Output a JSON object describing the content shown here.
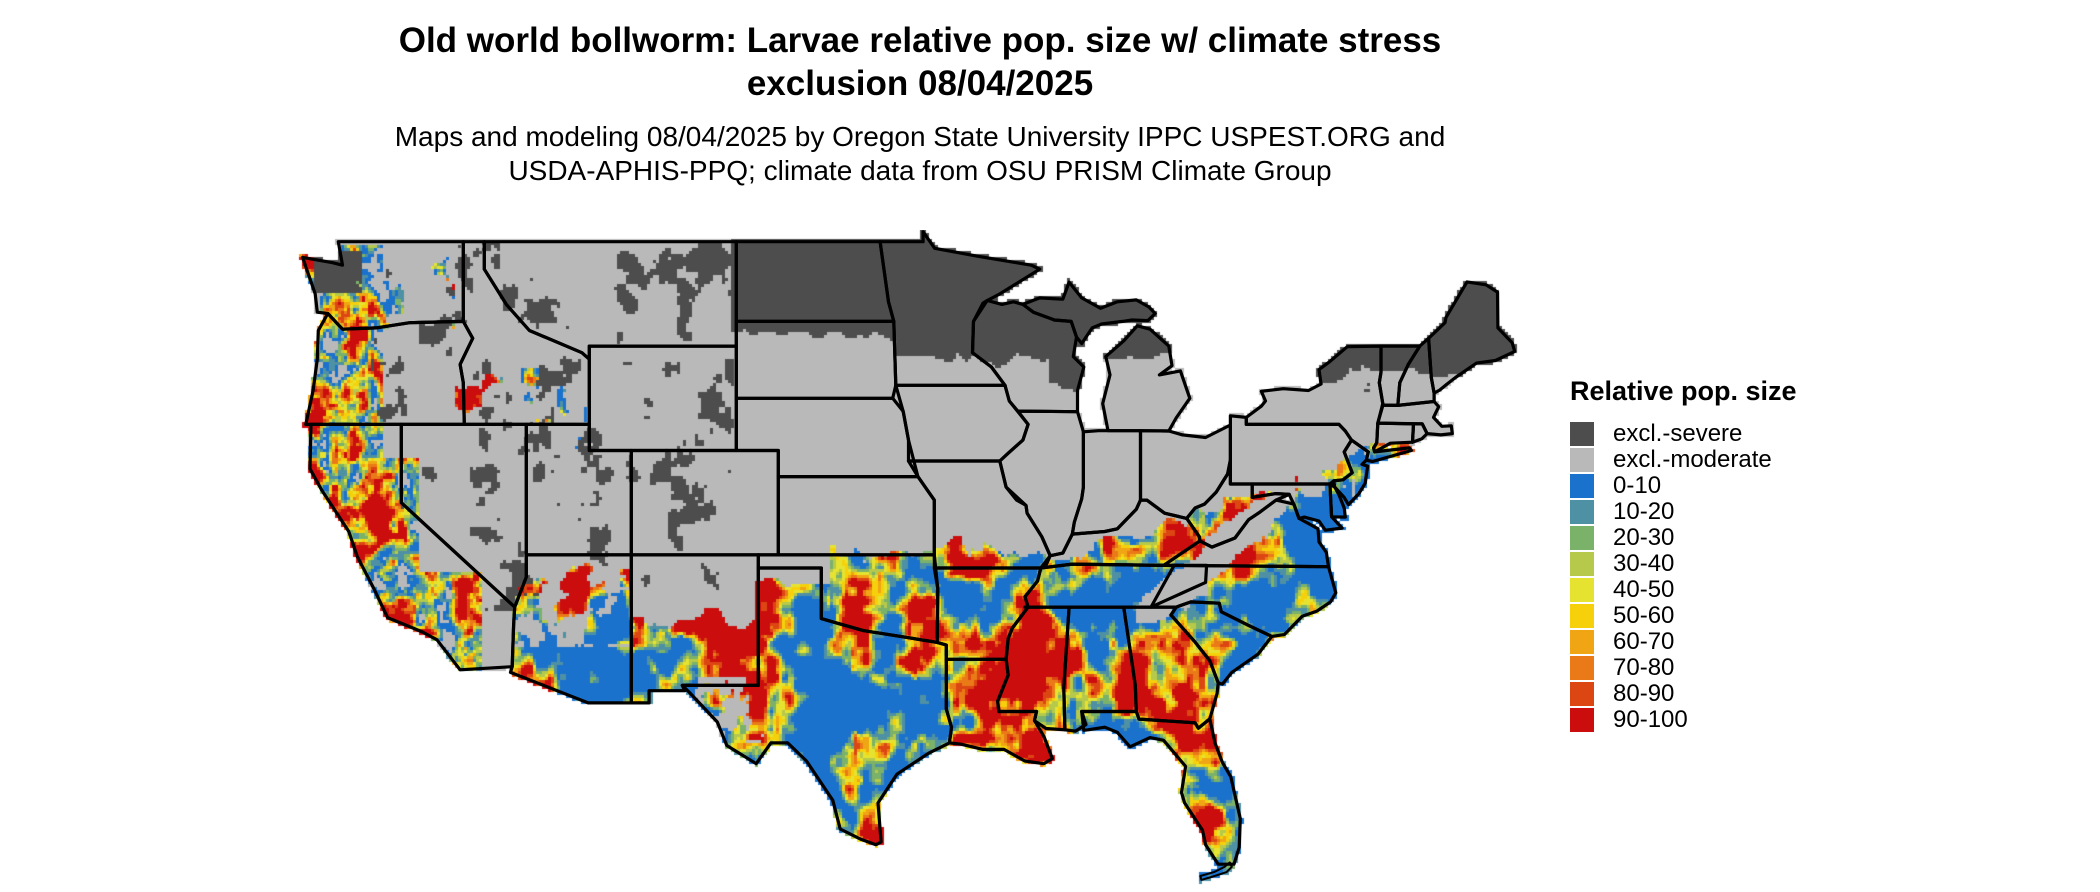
{
  "header": {
    "title_line1": "Old world bollworm: Larvae relative pop. size w/ climate stress",
    "title_line2": "exclusion 08/04/2025",
    "subtitle_line1": "Maps and modeling 08/04/2025 by Oregon State University IPPC USPEST.ORG and",
    "subtitle_line2": "USDA-APHIS-PPQ; climate data from OSU PRISM Climate Group"
  },
  "legend": {
    "title": "Relative pop. size",
    "entries": [
      {
        "label": "excl.-severe",
        "color": "#4D4D4D"
      },
      {
        "label": "excl.-moderate",
        "color": "#B9B9B9"
      },
      {
        "label": "0-10",
        "color": "#1B72CC"
      },
      {
        "label": "10-20",
        "color": "#4E90A4"
      },
      {
        "label": "20-30",
        "color": "#7BB269"
      },
      {
        "label": "30-40",
        "color": "#B6C94B"
      },
      {
        "label": "40-50",
        "color": "#E6E330"
      },
      {
        "label": "50-60",
        "color": "#F6D10B"
      },
      {
        "label": "60-70",
        "color": "#F0A514"
      },
      {
        "label": "70-80",
        "color": "#EA7A18"
      },
      {
        "label": "80-90",
        "color": "#DC4612"
      },
      {
        "label": "90-100",
        "color": "#CB0D0D"
      }
    ]
  }
}
